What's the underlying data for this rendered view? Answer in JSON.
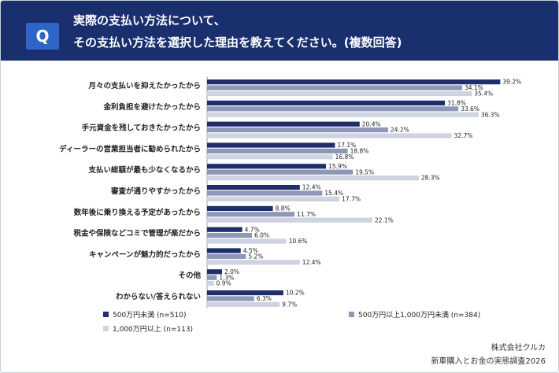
{
  "header": {
    "badge": "Q",
    "title_line1": "実際の支払い方法について、",
    "title_line2": "その支払い方法を選択した理由を教えてください。(複数回答)"
  },
  "footer": {
    "company": "株式会社クルカ",
    "survey": "新車購入とお金の実態調査2026"
  },
  "colors": {
    "header_bg": "#1a2f6e",
    "series1": "#1f2d6b",
    "series2": "#8e97b6",
    "series3": "#cfd3e1"
  },
  "chart_data": {
    "type": "bar",
    "orientation": "horizontal",
    "categories": [
      "月々の支払いを抑えたかったから",
      "金利負担を避けたかったから",
      "手元資金を残しておきたかったから",
      "ディーラーの営業担当者に勧められたから",
      "支払い総額が最も少なくなるから",
      "審査が通りやすかったから",
      "数年後に乗り換える予定があったから",
      "税金や保険などコミで管理が楽だから",
      "キャンペーンが魅力的だったから",
      "その他",
      "わからない/答えられない"
    ],
    "series": [
      {
        "name": "500万円未満 (n=510)",
        "values": [
          39.2,
          31.8,
          20.4,
          17.1,
          15.9,
          12.4,
          8.8,
          4.7,
          4.5,
          2.0,
          10.2
        ],
        "labels": [
          "39.2%",
          "31.8%",
          "20.4%",
          "17.1%",
          "15.9%",
          "12.4%",
          "8.8%",
          "4.7%",
          "4.5%",
          "2.0%",
          "10.2%"
        ]
      },
      {
        "name": "500万円以上1,000万円未満 (n=384)",
        "values": [
          34.1,
          33.6,
          24.2,
          18.8,
          19.5,
          15.4,
          11.7,
          6.0,
          5.2,
          1.3,
          6.3
        ],
        "labels": [
          "34.1%",
          "33.6%",
          "24.2%",
          "18.8%",
          "19.5%",
          "15.4%",
          "11.7%",
          "6.0%",
          "5.2%",
          "1.3%",
          "6.3%"
        ]
      },
      {
        "name": "1,000万円以上 (n=113)",
        "values": [
          35.4,
          36.3,
          32.7,
          16.8,
          28.3,
          17.7,
          22.1,
          10.6,
          12.4,
          0.9,
          9.7
        ],
        "labels": [
          "35.4%",
          "36.3%",
          "32.7%",
          "16.8%",
          "28.3%",
          "17.7%",
          "22.1%",
          "10.6%",
          "12.4%",
          "0.9%",
          "9.7%"
        ]
      }
    ],
    "xlim": [
      0,
      40
    ],
    "grid": false,
    "legend_position": "bottom"
  }
}
